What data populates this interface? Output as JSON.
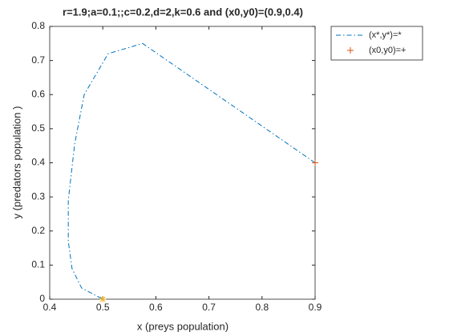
{
  "chart_data": {
    "type": "line",
    "title": "r=1.9;a=0.1;;c=0.2,d=2,k=0.6 and (x0,y0)=(0.9,0.4)",
    "x_label": "x (preys population)",
    "y_label": "y (predators population )",
    "xlim": [
      0.4,
      0.9
    ],
    "xticks": [
      0.4,
      0.5,
      0.6,
      0.7,
      0.8,
      0.9
    ],
    "ylim": [
      0,
      0.8
    ],
    "yticks": [
      0,
      0.1,
      0.2,
      0.3,
      0.4,
      0.5,
      0.6,
      0.7,
      0.8
    ],
    "legend": "outside-top-right",
    "series": [
      {
        "name": "(x*,y*)=*",
        "color": "#0072bd",
        "style": "dash-dot",
        "x": [
          0.9,
          0.575,
          0.51,
          0.465,
          0.447,
          0.435,
          0.435,
          0.442,
          0.46,
          0.5
        ],
        "values": [
          0.4,
          0.75,
          0.72,
          0.6,
          0.455,
          0.29,
          0.17,
          0.09,
          0.033,
          0
        ]
      },
      {
        "name": "(x0,y0)=+",
        "color": "#d95319",
        "marker": "plus",
        "x": [
          0.9
        ],
        "values": [
          0.4
        ]
      },
      {
        "color": "#edb120",
        "marker": "star",
        "x": [
          0.5
        ],
        "values": [
          0
        ]
      }
    ]
  }
}
